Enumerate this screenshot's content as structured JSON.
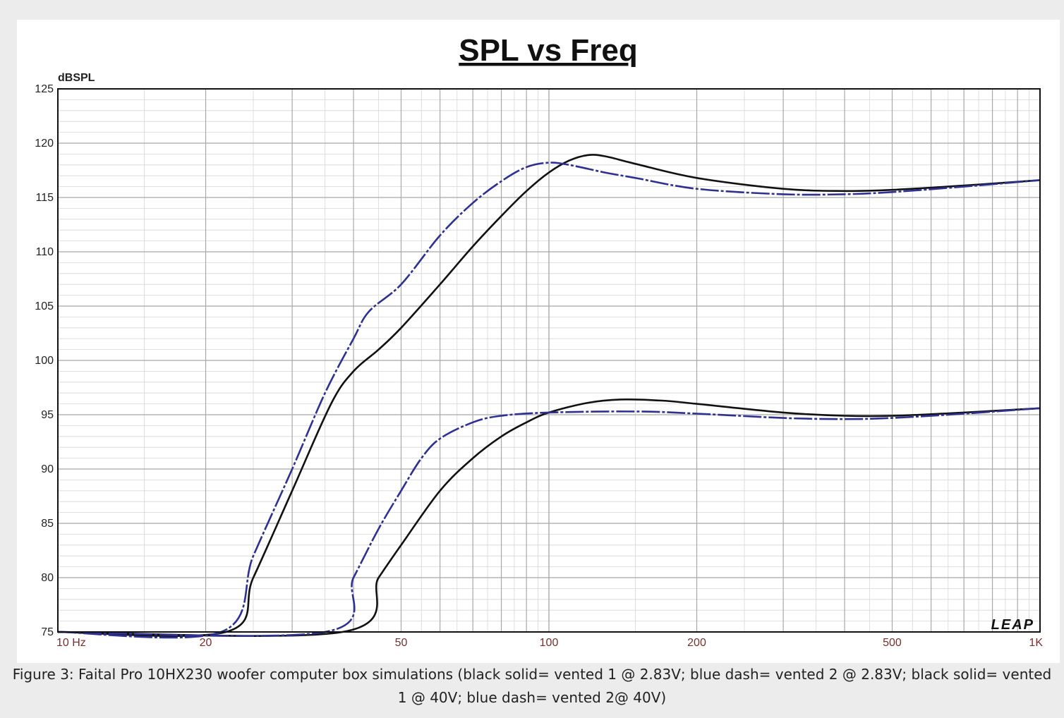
{
  "caption": "Figure 3: Faital Pro 10HX230 woofer computer box simulations (black solid= vented 1 @ 2.83V; blue dash= vented 2 @ 2.83V; black solid= vented 1 @ 40V; blue dash= vented 2@ 40V)",
  "watermark": "LEAP",
  "chart_data": {
    "type": "line",
    "title": "SPL vs Freq",
    "ylabel": "dBSPL",
    "xlabel": "",
    "xscale": "log",
    "xlim": [
      10,
      1000
    ],
    "ylim": [
      75,
      125
    ],
    "grid": true,
    "x_tick_values": [
      10,
      20,
      50,
      100,
      200,
      500,
      1000
    ],
    "x_tick_labels": [
      "10  Hz",
      "20",
      "50",
      "100",
      "200",
      "500",
      "1K"
    ],
    "y_ticks": [
      75,
      80,
      85,
      90,
      95,
      100,
      105,
      110,
      115,
      120,
      125
    ],
    "colors": {
      "black": "#111111",
      "blue": "#2e3192",
      "grid_major": "#a8a8a8",
      "grid_minor": "#d6d6d6",
      "tick_label_x": "#7a2e2e"
    },
    "series": [
      {
        "color": "#111111",
        "dash": false,
        "points": [
          [
            10,
            75
          ],
          [
            22,
            75
          ],
          [
            25,
            80
          ],
          [
            30,
            88
          ],
          [
            36,
            96
          ],
          [
            40,
            99
          ],
          [
            45,
            101
          ],
          [
            50,
            103
          ],
          [
            60,
            107
          ],
          [
            70,
            110.5
          ],
          [
            80,
            113.3
          ],
          [
            90,
            115.6
          ],
          [
            100,
            117.3
          ],
          [
            110,
            118.4
          ],
          [
            120,
            118.9
          ],
          [
            130,
            118.8
          ],
          [
            150,
            118.1
          ],
          [
            200,
            116.8
          ],
          [
            300,
            115.8
          ],
          [
            400,
            115.6
          ],
          [
            500,
            115.7
          ],
          [
            700,
            116.1
          ],
          [
            1000,
            116.6
          ]
        ]
      },
      {
        "color": "#2e3192",
        "dash": true,
        "points": [
          [
            10,
            75
          ],
          [
            21.5,
            75
          ],
          [
            25,
            82
          ],
          [
            30,
            90
          ],
          [
            35,
            97
          ],
          [
            40,
            102
          ],
          [
            43,
            104.5
          ],
          [
            50,
            107
          ],
          [
            60,
            111.5
          ],
          [
            70,
            114.5
          ],
          [
            80,
            116.5
          ],
          [
            90,
            117.8
          ],
          [
            100,
            118.2
          ],
          [
            110,
            118
          ],
          [
            130,
            117.3
          ],
          [
            150,
            116.8
          ],
          [
            200,
            115.8
          ],
          [
            300,
            115.3
          ],
          [
            400,
            115.3
          ],
          [
            500,
            115.5
          ],
          [
            700,
            116
          ],
          [
            1000,
            116.6
          ]
        ]
      },
      {
        "color": "#111111",
        "dash": false,
        "points": [
          [
            10,
            75
          ],
          [
            38,
            75
          ],
          [
            45,
            80
          ],
          [
            50,
            83
          ],
          [
            60,
            88
          ],
          [
            70,
            91
          ],
          [
            80,
            93
          ],
          [
            90,
            94.3
          ],
          [
            100,
            95.2
          ],
          [
            120,
            96.1
          ],
          [
            140,
            96.4
          ],
          [
            170,
            96.3
          ],
          [
            200,
            96
          ],
          [
            300,
            95.2
          ],
          [
            400,
            94.9
          ],
          [
            500,
            94.9
          ],
          [
            700,
            95.2
          ],
          [
            1000,
            95.6
          ]
        ]
      },
      {
        "color": "#2e3192",
        "dash": true,
        "points": [
          [
            10,
            75
          ],
          [
            35,
            75
          ],
          [
            40,
            80
          ],
          [
            45,
            84.5
          ],
          [
            50,
            88
          ],
          [
            55,
            91
          ],
          [
            60,
            92.8
          ],
          [
            70,
            94.3
          ],
          [
            80,
            94.9
          ],
          [
            100,
            95.2
          ],
          [
            150,
            95.3
          ],
          [
            200,
            95.1
          ],
          [
            300,
            94.7
          ],
          [
            400,
            94.6
          ],
          [
            500,
            94.7
          ],
          [
            700,
            95.1
          ],
          [
            1000,
            95.6
          ]
        ]
      }
    ]
  }
}
